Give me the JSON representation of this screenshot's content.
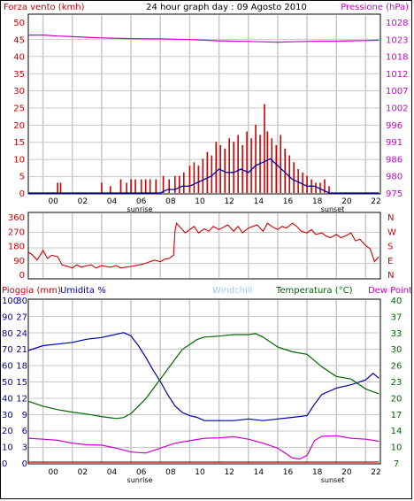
{
  "header": {
    "left_label": "Forza vento (kmh)",
    "title": "24 hour graph day : 09 Agosto 2010",
    "right_label": "Pressione (hPa)"
  },
  "x_axis": {
    "ticks": [
      "00",
      "02",
      "04",
      "06",
      "08",
      "10",
      "12",
      "14",
      "16",
      "18",
      "20",
      "22"
    ],
    "sunrise_label": "sunrise",
    "sunset_label": "sunset"
  },
  "colors": {
    "wind": "#cc0000",
    "gust_avg": "#0000aa",
    "pressure": "#cc00cc",
    "direction": "#cc0000",
    "humidity": "#0000aa",
    "temperature": "#006600",
    "dewpoint": "#cc00cc",
    "rain": "#cc0000",
    "grid": "#c8c8c8"
  },
  "chart_data": [
    {
      "type": "line",
      "name": "wind-pressure",
      "xlabel": "",
      "ylabel_left": "Forza vento (kmh)",
      "ylabel_right": "Pressione (hPa)",
      "ylim_left": [
        0,
        50
      ],
      "yticks_left": [
        "0",
        "5",
        "10",
        "15",
        "20",
        "25",
        "30",
        "35",
        "40",
        "45",
        "50"
      ],
      "ylim_right": [
        975,
        1028
      ],
      "yticks_right": [
        "975",
        "980",
        "986",
        "991",
        "996",
        "1002",
        "1007",
        "1012",
        "1018",
        "1023",
        "1028"
      ],
      "grid": true,
      "series": [
        {
          "name": "Forza vento (kmh)",
          "role": "wind",
          "style": "bars",
          "x": [
            2.0,
            2.2,
            5.0,
            5.6,
            6.3,
            6.7,
            7.0,
            7.3,
            7.7,
            8.0,
            8.3,
            8.7,
            9.2,
            9.6,
            10.0,
            10.3,
            10.6,
            11.0,
            11.3,
            11.6,
            11.9,
            12.2,
            12.5,
            12.8,
            13.1,
            13.4,
            13.7,
            14.0,
            14.3,
            14.6,
            14.9,
            15.2,
            15.5,
            15.8,
            16.1,
            16.3,
            16.6,
            16.9,
            17.2,
            17.5,
            17.8,
            18.1,
            18.4,
            18.7,
            19.0,
            19.3,
            19.6,
            19.9,
            20.2,
            20.5
          ],
          "values": [
            3,
            3,
            3,
            2,
            4,
            3,
            4,
            4,
            4,
            4,
            4,
            4,
            5,
            4,
            5,
            5,
            6,
            8,
            9,
            8,
            10,
            12,
            11,
            15,
            14,
            13,
            16,
            15,
            17,
            14,
            18,
            16,
            20,
            17,
            26,
            18,
            16,
            14,
            17,
            13,
            11,
            9,
            7,
            6,
            5,
            4,
            3,
            3,
            4,
            2
          ]
        },
        {
          "name": "",
          "role": "wind-avg",
          "style": "line",
          "x": [
            0,
            9.0,
            9.5,
            10.0,
            10.5,
            11.0,
            11.5,
            12.0,
            12.5,
            13.0,
            13.5,
            14.0,
            14.5,
            15.0,
            15.5,
            16.0,
            16.5,
            17.0,
            17.5,
            18.0,
            18.5,
            19.0,
            19.5,
            20.0,
            20.5,
            21.0,
            23.9
          ],
          "values": [
            0,
            0,
            1,
            1,
            2,
            2,
            3,
            4,
            5,
            7,
            6,
            6,
            7,
            6,
            8,
            9,
            10,
            8,
            6,
            4,
            3,
            2,
            2,
            1,
            0,
            0,
            0
          ]
        },
        {
          "name": "Pressione (hPa)",
          "role": "pressure",
          "style": "line",
          "axis": "right",
          "x": [
            0,
            1,
            2,
            3,
            4,
            5,
            6,
            7,
            8,
            9,
            10,
            11,
            12,
            13,
            14,
            15,
            16,
            17,
            18,
            19,
            20,
            21,
            22,
            23,
            23.9
          ],
          "values": [
            1024,
            1024,
            1023.7,
            1023.5,
            1023.3,
            1023.1,
            1023.0,
            1022.9,
            1022.8,
            1022.8,
            1022.7,
            1022.6,
            1022.4,
            1022.2,
            1022.1,
            1022.0,
            1021.9,
            1021.8,
            1021.9,
            1022.0,
            1022.1,
            1022.1,
            1022.2,
            1022.3,
            1022.4
          ]
        }
      ]
    },
    {
      "type": "line",
      "name": "wind-direction",
      "ylim": [
        0,
        360
      ],
      "yticks_left": [
        "0",
        "90",
        "180",
        "270",
        "360"
      ],
      "compass_labels": [
        "N",
        "W",
        "S",
        "E",
        "N"
      ],
      "grid": true,
      "series": [
        {
          "name": "",
          "role": "direction",
          "x": [
            0,
            0.3,
            0.6,
            1.0,
            1.3,
            1.6,
            2.0,
            2.3,
            2.7,
            3.0,
            3.3,
            3.6,
            4.0,
            4.3,
            4.6,
            5.0,
            5.3,
            5.6,
            6.0,
            6.3,
            6.6,
            7.0,
            7.3,
            7.6,
            8.0,
            8.3,
            8.6,
            9.0,
            9.3,
            9.6,
            9.9,
            10.0,
            10.1,
            10.4,
            10.7,
            11.0,
            11.3,
            11.6,
            12.0,
            12.3,
            12.6,
            13.0,
            13.3,
            13.6,
            14.0,
            14.3,
            14.6,
            15.0,
            15.3,
            15.6,
            16.0,
            16.3,
            16.6,
            17.0,
            17.3,
            17.6,
            18.0,
            18.3,
            18.6,
            19.0,
            19.3,
            19.6,
            20.0,
            20.3,
            20.6,
            21.0,
            21.3,
            21.6,
            22.0,
            22.3,
            22.6,
            23.0,
            23.3,
            23.6,
            23.9
          ],
          "values": [
            140,
            120,
            90,
            150,
            100,
            120,
            110,
            60,
            50,
            40,
            60,
            45,
            55,
            60,
            40,
            55,
            50,
            45,
            55,
            40,
            45,
            50,
            55,
            60,
            70,
            80,
            90,
            80,
            95,
            100,
            120,
            270,
            320,
            290,
            260,
            280,
            300,
            260,
            285,
            270,
            300,
            280,
            295,
            310,
            270,
            300,
            260,
            290,
            300,
            310,
            270,
            320,
            300,
            280,
            300,
            290,
            320,
            300,
            270,
            260,
            280,
            250,
            260,
            240,
            230,
            250,
            230,
            240,
            260,
            210,
            220,
            180,
            160,
            80,
            110
          ]
        }
      ]
    },
    {
      "type": "line",
      "name": "rain-humidity-temperature",
      "labels": [
        "Pioggia (mm)",
        "Umidita %",
        "Windchill",
        "Temperatura (°C)",
        "Dew Point"
      ],
      "ylim_rain": [
        0,
        30
      ],
      "yticks_rain": [
        "0",
        "3",
        "6",
        "9",
        "12",
        "15",
        "18",
        "21",
        "24",
        "27",
        "30"
      ],
      "ylim_humidity": [
        0,
        100
      ],
      "yticks_humidity": [
        "0",
        "10",
        "20",
        "30",
        "40",
        "50",
        "60",
        "70",
        "80",
        "90",
        "100"
      ],
      "ylim_temp": [
        7,
        40
      ],
      "yticks_temp": [
        "7",
        "10",
        "14",
        "17",
        "20",
        "23",
        "26",
        "30",
        "33",
        "37",
        "40"
      ],
      "grid": true,
      "series": [
        {
          "name": "Umidita %",
          "role": "humidity",
          "x": [
            0,
            1,
            2,
            3,
            4,
            5,
            6,
            6.5,
            7,
            7.5,
            8,
            8.5,
            9,
            9.5,
            10,
            10.5,
            11,
            11.5,
            12,
            13,
            14,
            15,
            16,
            17,
            18,
            19,
            19.5,
            20,
            21,
            22,
            23,
            23.5,
            23.9
          ],
          "values": [
            69,
            72,
            73,
            74,
            76,
            77,
            79,
            80,
            78,
            72,
            65,
            57,
            50,
            42,
            35,
            31,
            29,
            28,
            26,
            26,
            26,
            27,
            26,
            27,
            28,
            29,
            36,
            42,
            46,
            48,
            51,
            55,
            52
          ]
        },
        {
          "name": "Temperatura (°C)",
          "role": "temperature",
          "x": [
            0,
            1,
            2,
            3,
            4,
            5,
            6,
            6.5,
            7,
            7.5,
            8,
            8.5,
            9,
            9.5,
            10,
            10.5,
            11,
            11.5,
            12,
            13,
            14,
            15,
            15.5,
            16,
            16.5,
            17,
            18,
            19,
            20,
            21,
            22,
            23,
            23.9
          ],
          "values": [
            19.5,
            18.5,
            17.8,
            17.3,
            16.9,
            16.4,
            16.0,
            16.2,
            17.0,
            18.5,
            20.0,
            22.0,
            24.0,
            26.0,
            28.0,
            30.0,
            31.0,
            32.0,
            32.5,
            32.7,
            33.0,
            33.0,
            33.2,
            32.5,
            31.5,
            30.5,
            29.5,
            29.0,
            26.5,
            24.5,
            24.0,
            22.0,
            21.0
          ]
        },
        {
          "name": "Dew Point",
          "role": "dewpoint",
          "x": [
            0,
            1,
            2,
            3,
            4,
            5,
            6,
            7,
            8,
            9,
            10,
            11,
            12,
            13,
            14,
            15,
            16,
            17,
            17.5,
            18,
            18.5,
            19,
            19.5,
            20,
            21,
            22,
            23,
            23.9
          ],
          "values": [
            12.0,
            11.8,
            11.6,
            11.0,
            10.7,
            10.6,
            10.0,
            9.2,
            9.0,
            10.0,
            11.0,
            11.5,
            12.0,
            12.1,
            12.3,
            11.8,
            11.0,
            10.0,
            9.0,
            8.0,
            7.8,
            8.5,
            11.5,
            12.4,
            12.5,
            12.0,
            11.8,
            11.4
          ]
        },
        {
          "name": "Pioggia (mm)",
          "role": "rain",
          "x": [
            0,
            23.9
          ],
          "values": [
            0,
            0
          ]
        }
      ]
    }
  ]
}
